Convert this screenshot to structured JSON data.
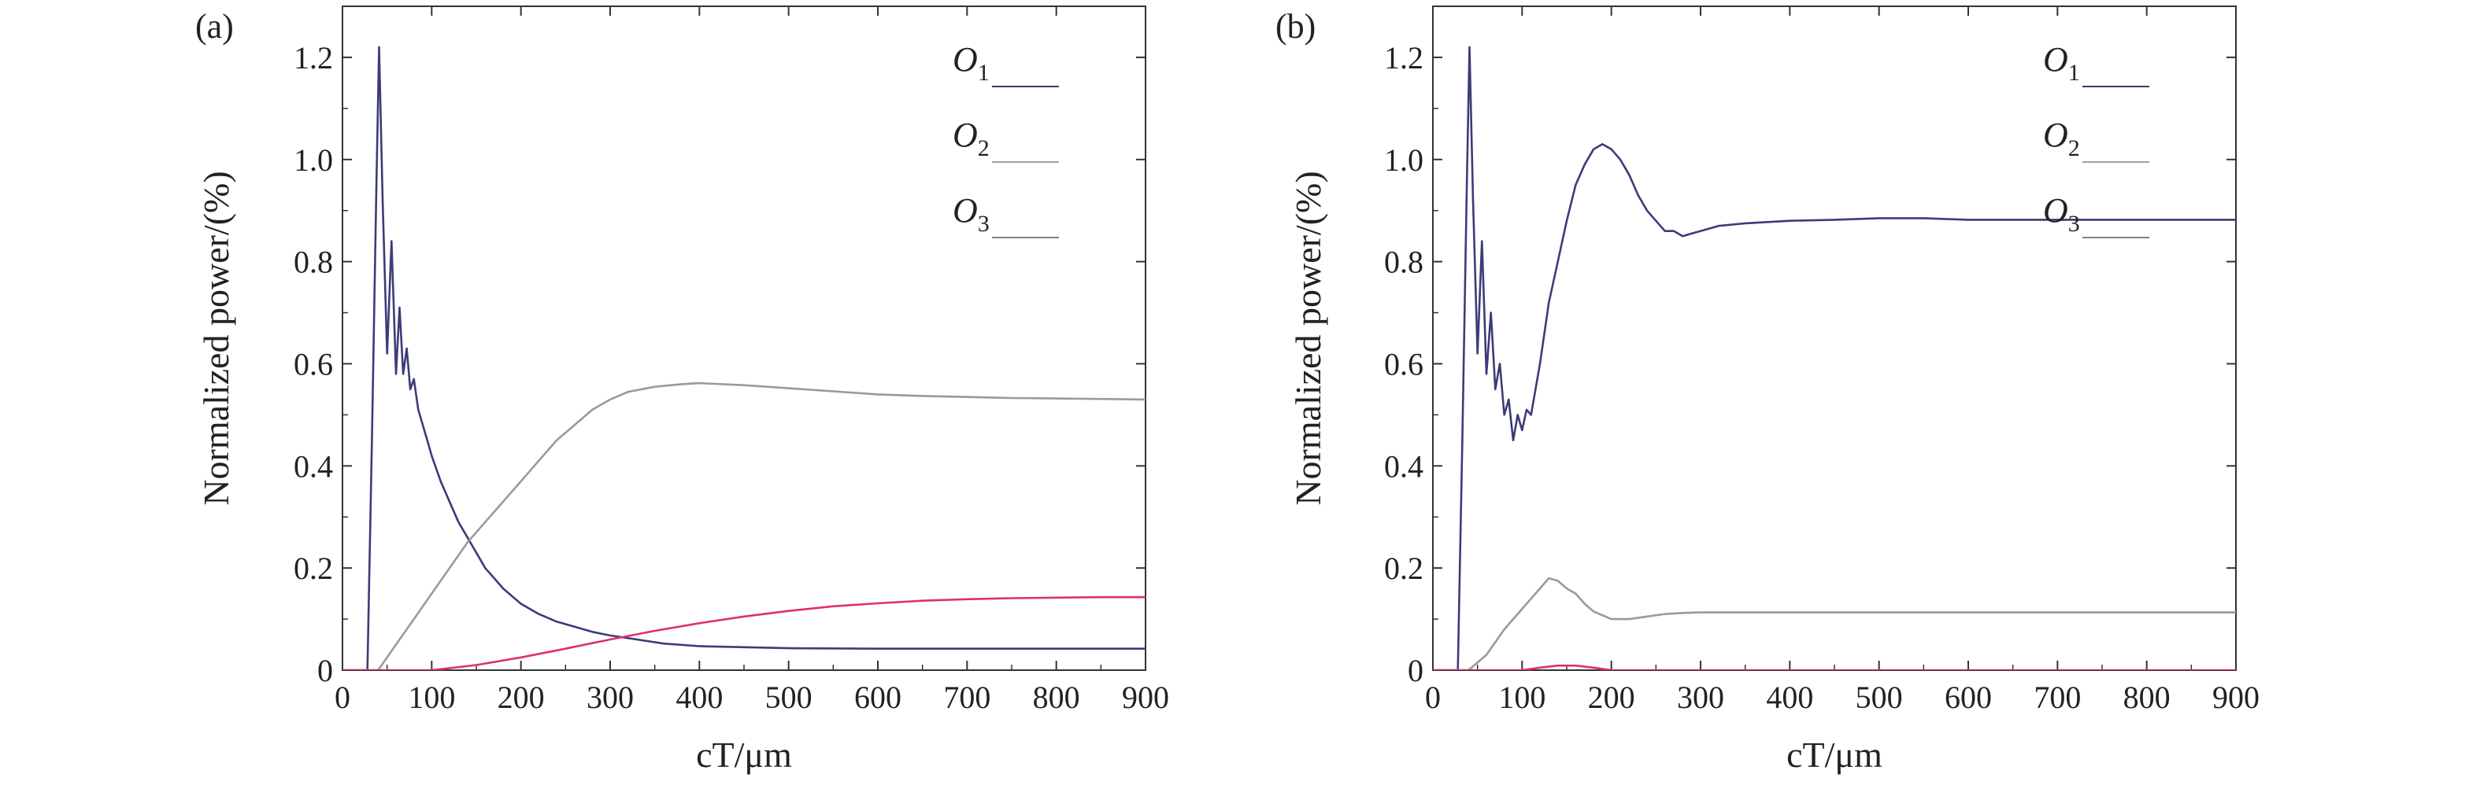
{
  "chart_data": [
    {
      "panel": "(a)",
      "type": "line",
      "xlabel": "cT/μm",
      "ylabel": "Normalized power/(%)",
      "xlim": [
        0,
        900
      ],
      "ylim": [
        0,
        1.3
      ],
      "x_ticks": [
        "0",
        "100",
        "200",
        "300",
        "400",
        "500",
        "600",
        "700",
        "800",
        "900"
      ],
      "y_ticks": [
        "0",
        "0.2",
        "0.4",
        "0.6",
        "0.8",
        "1.0",
        "1.2"
      ],
      "grid": false,
      "legend_placement": "top-right",
      "legend": [
        {
          "base": "O",
          "sub": "1",
          "color": "#3a3a6a"
        },
        {
          "base": "O",
          "sub": "2",
          "color": "#a0a0a0"
        },
        {
          "base": "O",
          "sub": "3",
          "color": "#808080"
        }
      ],
      "series": [
        {
          "color": "#3c3c78",
          "x": [
            0,
            28,
            33,
            38,
            41,
            45,
            50,
            55,
            60,
            64,
            68,
            72,
            76,
            80,
            85,
            90,
            95,
            100,
            110,
            120,
            130,
            140,
            150,
            160,
            170,
            180,
            190,
            200,
            220,
            240,
            260,
            280,
            300,
            330,
            360,
            400,
            450,
            500,
            600,
            700,
            800,
            900
          ],
          "y": [
            0,
            0,
            0.45,
            0.95,
            1.22,
            0.92,
            0.62,
            0.84,
            0.58,
            0.71,
            0.58,
            0.63,
            0.55,
            0.57,
            0.51,
            0.48,
            0.45,
            0.42,
            0.37,
            0.33,
            0.29,
            0.26,
            0.23,
            0.2,
            0.18,
            0.16,
            0.145,
            0.13,
            0.11,
            0.095,
            0.085,
            0.075,
            0.068,
            0.06,
            0.052,
            0.047,
            0.045,
            0.043,
            0.042,
            0.042,
            0.042,
            0.042
          ]
        },
        {
          "color": "#9a9a9a",
          "x": [
            0,
            40,
            60,
            80,
            100,
            120,
            140,
            160,
            180,
            200,
            220,
            240,
            260,
            280,
            300,
            320,
            350,
            380,
            400,
            450,
            500,
            550,
            600,
            650,
            700,
            750,
            800,
            900
          ],
          "y": [
            0,
            0,
            0.05,
            0.1,
            0.15,
            0.2,
            0.25,
            0.29,
            0.33,
            0.37,
            0.41,
            0.45,
            0.48,
            0.51,
            0.53,
            0.545,
            0.555,
            0.56,
            0.562,
            0.558,
            0.552,
            0.546,
            0.54,
            0.537,
            0.535,
            0.533,
            0.532,
            0.53
          ]
        },
        {
          "color": "#e0306a",
          "x": [
            0,
            100,
            150,
            200,
            250,
            300,
            350,
            400,
            450,
            500,
            550,
            600,
            650,
            700,
            750,
            800,
            850,
            900
          ],
          "y": [
            0,
            0,
            0.01,
            0.025,
            0.042,
            0.06,
            0.077,
            0.092,
            0.105,
            0.116,
            0.125,
            0.131,
            0.136,
            0.139,
            0.141,
            0.142,
            0.143,
            0.143
          ]
        }
      ]
    },
    {
      "panel": "(b)",
      "type": "line",
      "xlabel": "cT/μm",
      "ylabel": "Normalized power/(%)",
      "xlim": [
        0,
        900
      ],
      "ylim": [
        0,
        1.3
      ],
      "x_ticks": [
        "0",
        "100",
        "200",
        "300",
        "400",
        "500",
        "600",
        "700",
        "800",
        "900"
      ],
      "y_ticks": [
        "0",
        "0.2",
        "0.4",
        "0.6",
        "0.8",
        "1.0",
        "1.2"
      ],
      "grid": false,
      "legend_placement": "top-right",
      "legend": [
        {
          "base": "O",
          "sub": "1",
          "color": "#3a3a6a"
        },
        {
          "base": "O",
          "sub": "2",
          "color": "#a0a0a0"
        },
        {
          "base": "O",
          "sub": "3",
          "color": "#808080"
        }
      ],
      "series": [
        {
          "color": "#3c3c78",
          "x": [
            0,
            28,
            33,
            38,
            41,
            45,
            50,
            55,
            60,
            65,
            70,
            75,
            80,
            85,
            90,
            95,
            100,
            105,
            110,
            120,
            130,
            140,
            150,
            160,
            170,
            180,
            190,
            200,
            210,
            220,
            230,
            240,
            250,
            260,
            270,
            280,
            290,
            300,
            320,
            350,
            400,
            450,
            500,
            550,
            600,
            700,
            800,
            900
          ],
          "y": [
            0,
            0,
            0.45,
            0.95,
            1.22,
            0.92,
            0.62,
            0.84,
            0.58,
            0.7,
            0.55,
            0.6,
            0.5,
            0.53,
            0.45,
            0.5,
            0.47,
            0.51,
            0.5,
            0.6,
            0.72,
            0.8,
            0.88,
            0.95,
            0.99,
            1.02,
            1.03,
            1.02,
            1.0,
            0.97,
            0.93,
            0.9,
            0.88,
            0.86,
            0.86,
            0.85,
            0.855,
            0.86,
            0.87,
            0.875,
            0.88,
            0.882,
            0.885,
            0.885,
            0.882,
            0.882,
            0.882,
            0.882
          ]
        },
        {
          "color": "#9a9a9a",
          "x": [
            0,
            40,
            60,
            80,
            100,
            110,
            120,
            130,
            140,
            150,
            160,
            170,
            180,
            200,
            220,
            240,
            260,
            280,
            300,
            350,
            400,
            500,
            600,
            700,
            800,
            900
          ],
          "y": [
            0,
            0,
            0.03,
            0.08,
            0.12,
            0.14,
            0.16,
            0.18,
            0.175,
            0.16,
            0.15,
            0.13,
            0.115,
            0.1,
            0.1,
            0.105,
            0.11,
            0.112,
            0.113,
            0.113,
            0.113,
            0.113,
            0.113,
            0.113,
            0.113,
            0.113
          ]
        },
        {
          "color": "#e0306a",
          "x": [
            0,
            100,
            120,
            140,
            160,
            180,
            200,
            900
          ],
          "y": [
            0,
            0,
            0.005,
            0.009,
            0.009,
            0.005,
            0,
            0
          ]
        }
      ]
    }
  ]
}
